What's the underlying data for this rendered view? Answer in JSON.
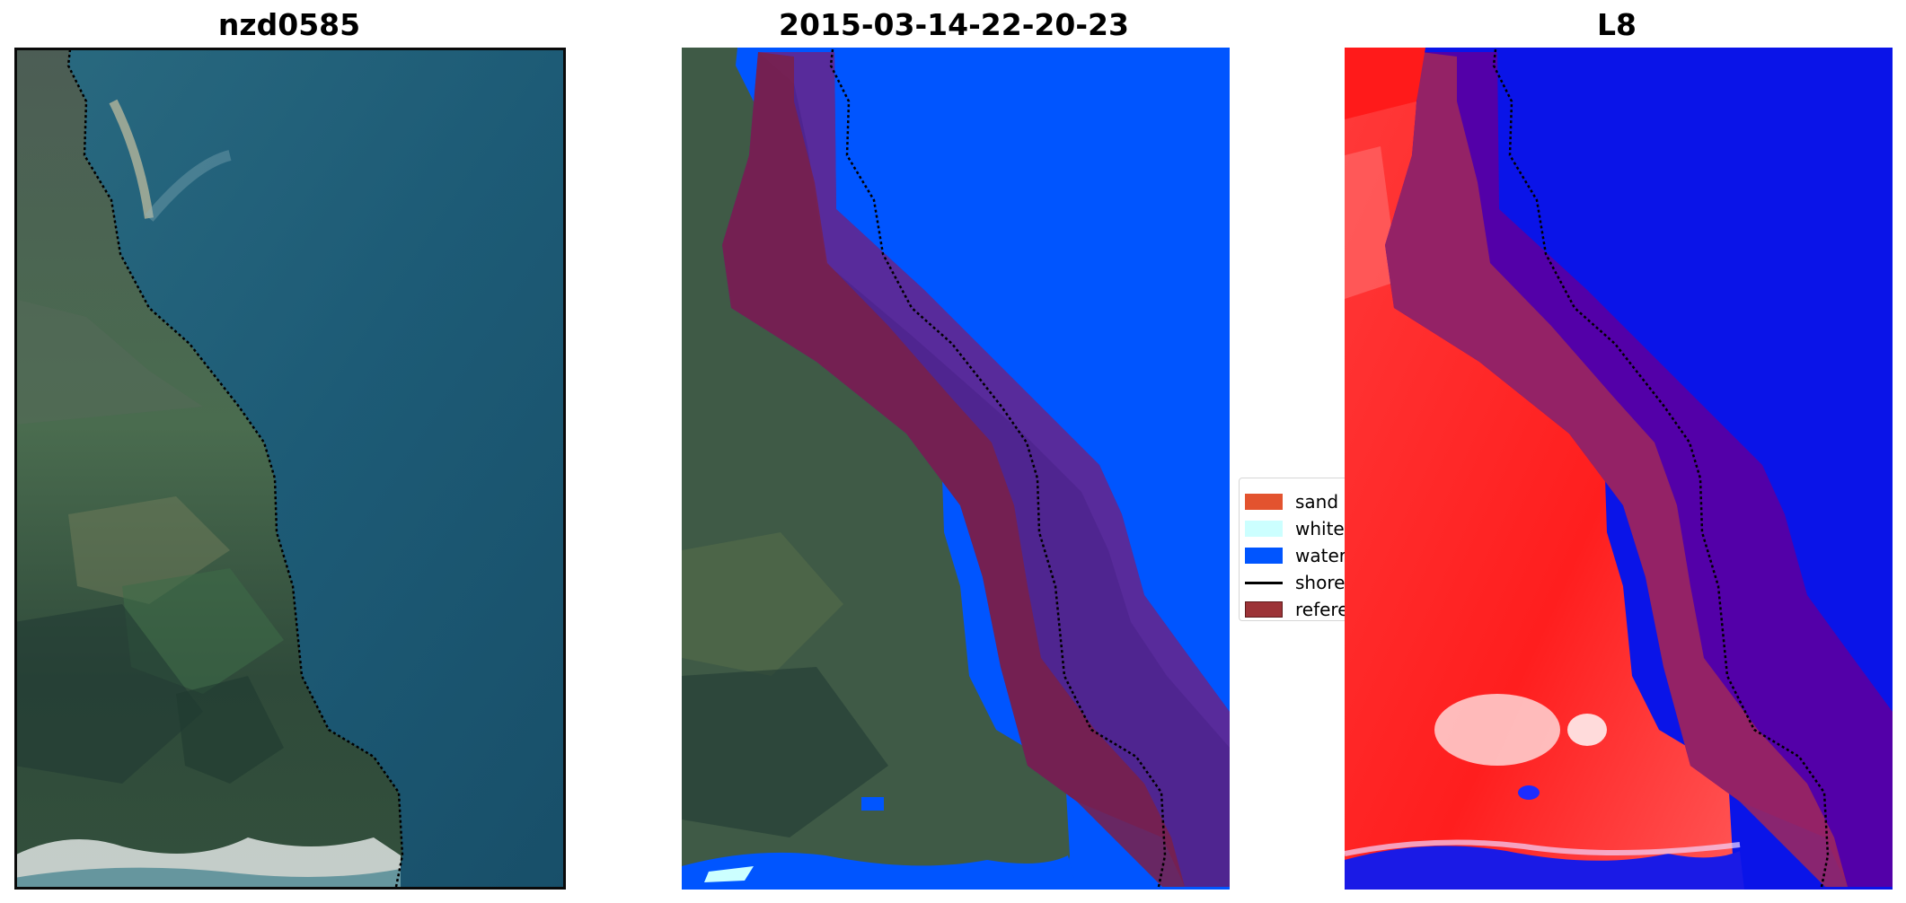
{
  "panels": [
    {
      "title": "nzd0585",
      "kind": "rgb"
    },
    {
      "title": "2015-03-14-22-20-23",
      "kind": "classified"
    },
    {
      "title": "L8",
      "kind": "index"
    }
  ],
  "legend": {
    "items": [
      {
        "label": "sand",
        "type": "patch",
        "color": "#e3532f"
      },
      {
        "label": "white-water",
        "type": "patch",
        "color": "#ccffff"
      },
      {
        "label": "water",
        "type": "patch",
        "color": "#0055ff"
      },
      {
        "label": "shoreline",
        "type": "line",
        "color": "#000000"
      },
      {
        "label": "reference shoreline buffer",
        "type": "patch",
        "color": "#9c3337"
      }
    ]
  },
  "colors": {
    "ocean": "#1d5d78",
    "land_green": "#3e5a44",
    "water_class": "#0055ff",
    "buffer": "#9c3337",
    "index_land": "#ff2b2b",
    "index_water": "#0a14e8"
  }
}
